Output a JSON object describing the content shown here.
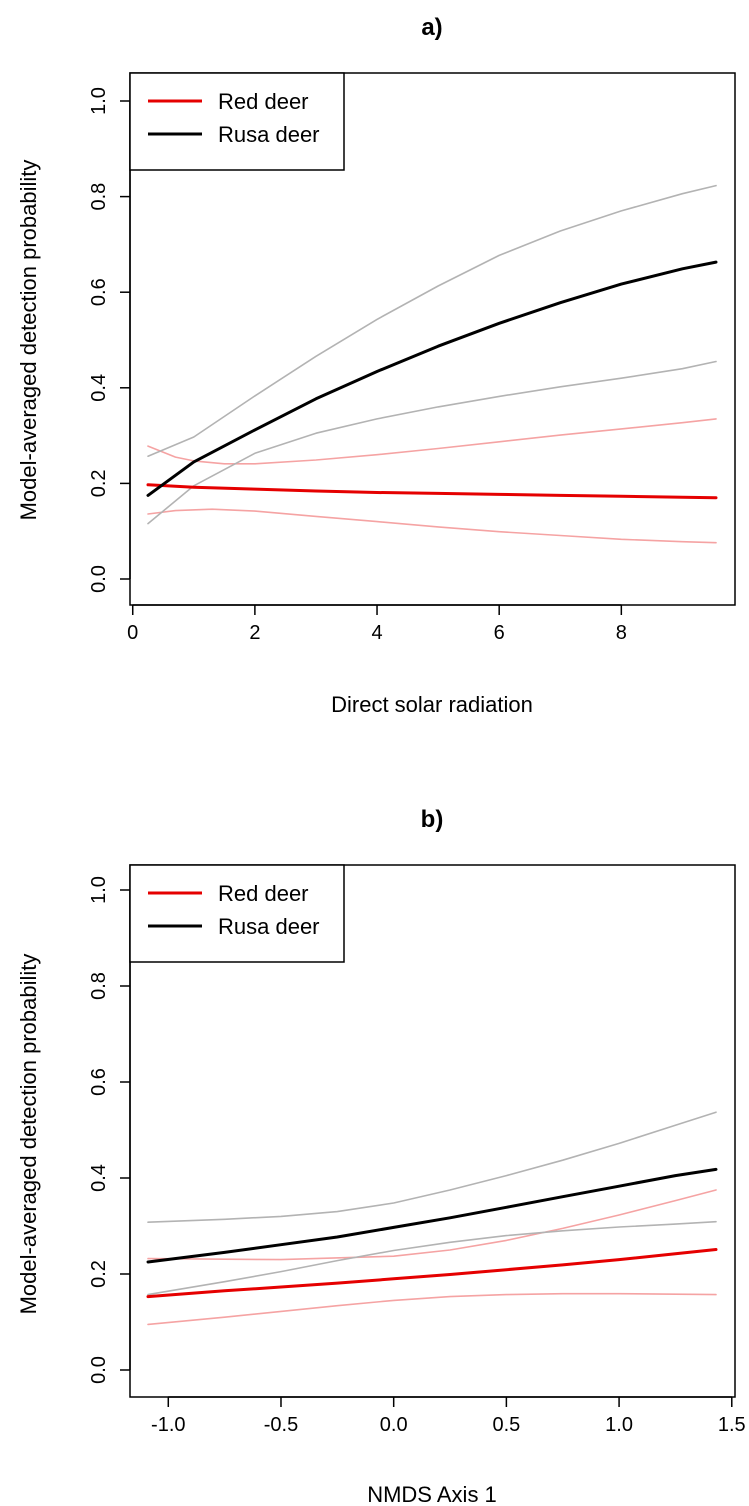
{
  "chart_data": [
    {
      "type": "line",
      "title": "a)",
      "xlabel": "Direct solar radiation",
      "ylabel": "Model-averaged detection probability",
      "xlim": [
        0.25,
        9.55
      ],
      "ylim": [
        0,
        1
      ],
      "xticks": [
        0,
        2,
        4,
        6,
        8
      ],
      "xtick_labels": [
        "0",
        "2",
        "4",
        "6",
        "8"
      ],
      "yticks": [
        0,
        0.2,
        0.4,
        0.6,
        0.8,
        1.0
      ],
      "ytick_labels": [
        "0.0",
        "0.2",
        "0.4",
        "0.6",
        "0.8",
        "1.0"
      ],
      "grid": false,
      "legend_position": "top-left",
      "legend": [
        {
          "label": "Red deer",
          "color": "#e50000"
        },
        {
          "label": "Rusa deer",
          "color": "#000000"
        }
      ],
      "series": [
        {
          "name": "Red deer",
          "role": "estimate",
          "color": "#e50000",
          "width": 3,
          "x": [
            0.25,
            1,
            2,
            3,
            4,
            5,
            6,
            7,
            8,
            9,
            9.55
          ],
          "y": [
            0.197,
            0.192,
            0.188,
            0.184,
            0.181,
            0.179,
            0.177,
            0.175,
            0.173,
            0.171,
            0.17
          ]
        },
        {
          "role": "upper-ci",
          "color": "#f5a3a3",
          "width": 1.6,
          "x": [
            0.25,
            0.7,
            1,
            1.5,
            2,
            3,
            4,
            5,
            6,
            7,
            8,
            9,
            9.55
          ],
          "y": [
            0.278,
            0.255,
            0.247,
            0.241,
            0.241,
            0.249,
            0.26,
            0.273,
            0.287,
            0.301,
            0.314,
            0.327,
            0.335
          ]
        },
        {
          "role": "lower-ci",
          "color": "#f5a3a3",
          "width": 1.6,
          "x": [
            0.25,
            0.7,
            1.3,
            2,
            3,
            4,
            5,
            6,
            7,
            8,
            9,
            9.55
          ],
          "y": [
            0.136,
            0.143,
            0.146,
            0.142,
            0.131,
            0.12,
            0.109,
            0.099,
            0.091,
            0.083,
            0.078,
            0.076
          ]
        },
        {
          "name": "Rusa deer",
          "role": "estimate",
          "color": "#000000",
          "width": 3,
          "x": [
            0.25,
            1,
            2,
            3,
            4,
            5,
            6,
            7,
            8,
            9,
            9.55
          ],
          "y": [
            0.175,
            0.245,
            0.312,
            0.377,
            0.434,
            0.487,
            0.535,
            0.578,
            0.617,
            0.649,
            0.663
          ]
        },
        {
          "role": "upper-ci",
          "color": "#b3b3b3",
          "width": 1.6,
          "x": [
            0.25,
            1,
            2,
            3,
            4,
            5,
            6,
            7,
            8,
            9,
            9.55
          ],
          "y": [
            0.257,
            0.297,
            0.383,
            0.466,
            0.543,
            0.613,
            0.677,
            0.728,
            0.77,
            0.806,
            0.823
          ]
        },
        {
          "role": "lower-ci",
          "color": "#b3b3b3",
          "width": 1.6,
          "x": [
            0.25,
            1,
            2,
            3,
            4,
            5,
            6,
            7,
            8,
            9,
            9.55
          ],
          "y": [
            0.116,
            0.195,
            0.263,
            0.305,
            0.335,
            0.36,
            0.382,
            0.402,
            0.42,
            0.44,
            0.455
          ]
        }
      ]
    },
    {
      "type": "line",
      "title": "b)",
      "xlabel": "NMDS Axis 1",
      "ylabel": "Model-averaged detection probability",
      "xlim": [
        -1.09,
        1.43
      ],
      "ylim": [
        0,
        1
      ],
      "xticks": [
        -1.0,
        -0.5,
        0.0,
        0.5,
        1.0,
        1.5
      ],
      "xtick_labels": [
        "-1.0",
        "-0.5",
        "0.0",
        "0.5",
        "1.0",
        "1.5"
      ],
      "yticks": [
        0,
        0.2,
        0.4,
        0.6,
        0.8,
        1.0
      ],
      "ytick_labels": [
        "0.0",
        "0.2",
        "0.4",
        "0.6",
        "0.8",
        "1.0"
      ],
      "grid": false,
      "legend_position": "top-left",
      "legend": [
        {
          "label": "Red deer",
          "color": "#e50000"
        },
        {
          "label": "Rusa deer",
          "color": "#000000"
        }
      ],
      "series": [
        {
          "name": "Red deer",
          "role": "estimate",
          "color": "#e50000",
          "width": 3,
          "x": [
            -1.09,
            -0.75,
            -0.5,
            -0.25,
            0,
            0.25,
            0.5,
            0.75,
            1.0,
            1.25,
            1.43
          ],
          "y": [
            0.153,
            0.165,
            0.173,
            0.181,
            0.19,
            0.199,
            0.209,
            0.219,
            0.23,
            0.242,
            0.251
          ]
        },
        {
          "role": "upper-ci",
          "color": "#f5a3a3",
          "width": 1.6,
          "x": [
            -1.09,
            -0.5,
            0,
            0.25,
            0.5,
            0.75,
            1.0,
            1.25,
            1.43
          ],
          "y": [
            0.232,
            0.23,
            0.237,
            0.25,
            0.27,
            0.295,
            0.323,
            0.353,
            0.375
          ]
        },
        {
          "role": "lower-ci",
          "color": "#f5a3a3",
          "width": 1.6,
          "x": [
            -1.09,
            -0.75,
            -0.5,
            -0.25,
            0,
            0.25,
            0.5,
            0.75,
            1.0,
            1.25,
            1.43
          ],
          "y": [
            0.095,
            0.11,
            0.122,
            0.134,
            0.145,
            0.153,
            0.157,
            0.159,
            0.159,
            0.158,
            0.157
          ]
        },
        {
          "name": "Rusa deer",
          "role": "estimate",
          "color": "#000000",
          "width": 3,
          "x": [
            -1.09,
            -0.75,
            -0.5,
            -0.25,
            0,
            0.25,
            0.5,
            0.75,
            1.0,
            1.25,
            1.43
          ],
          "y": [
            0.225,
            0.245,
            0.261,
            0.277,
            0.297,
            0.317,
            0.339,
            0.361,
            0.383,
            0.405,
            0.418
          ]
        },
        {
          "role": "upper-ci",
          "color": "#b3b3b3",
          "width": 1.6,
          "x": [
            -1.09,
            -0.75,
            -0.5,
            -0.25,
            0,
            0.25,
            0.5,
            0.75,
            1.0,
            1.25,
            1.43
          ],
          "y": [
            0.308,
            0.314,
            0.32,
            0.33,
            0.348,
            0.375,
            0.405,
            0.437,
            0.472,
            0.51,
            0.537
          ]
        },
        {
          "role": "lower-ci",
          "color": "#b3b3b3",
          "width": 1.6,
          "x": [
            -1.09,
            -0.75,
            -0.5,
            -0.25,
            0,
            0.25,
            0.5,
            0.75,
            1.0,
            1.25,
            1.43
          ],
          "y": [
            0.157,
            0.184,
            0.205,
            0.228,
            0.249,
            0.266,
            0.28,
            0.29,
            0.298,
            0.304,
            0.309
          ]
        }
      ]
    }
  ]
}
